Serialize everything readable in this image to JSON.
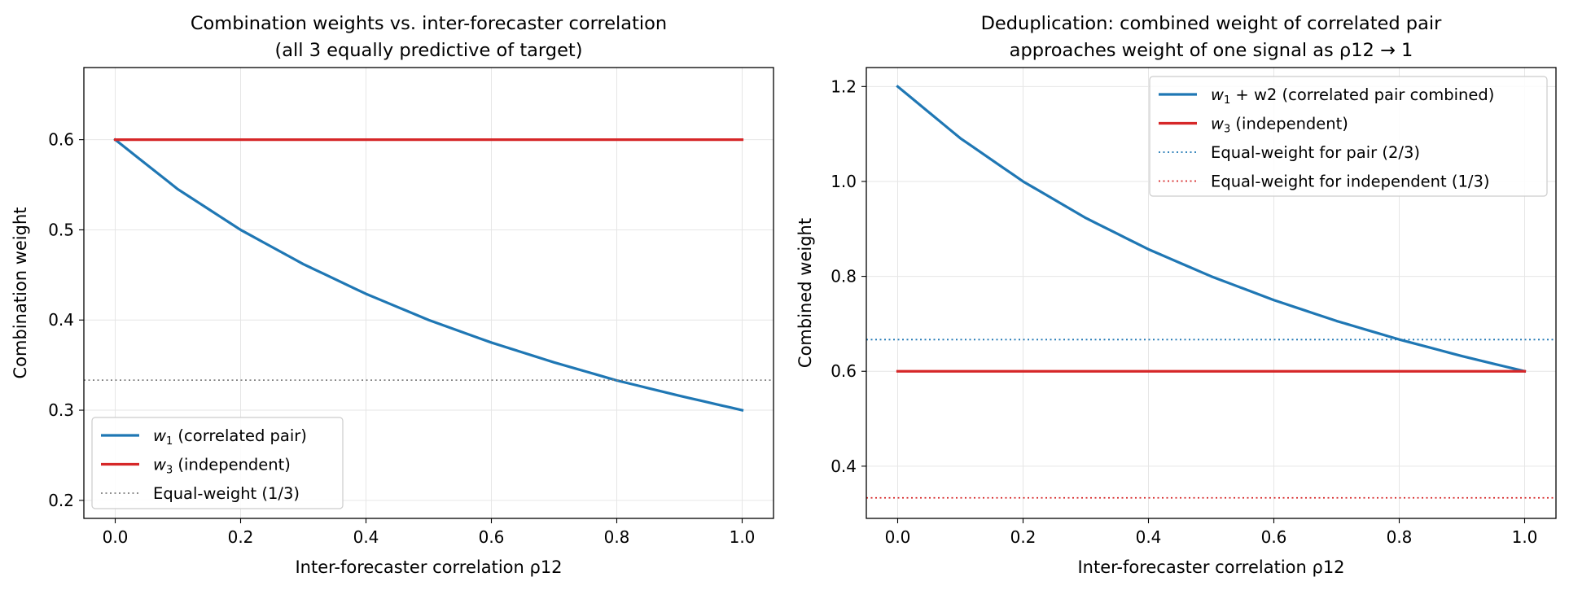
{
  "chart_data": [
    {
      "type": "line",
      "title": [
        "Combination weights vs. inter-forecaster correlation",
        "(all 3 equally predictive of target)"
      ],
      "xlabel": "Inter-forecaster correlation ρ12",
      "ylabel": "Combination weight",
      "xlim": [
        -0.05,
        1.05
      ],
      "ylim": [
        0.18,
        0.68
      ],
      "xticks": [
        0.0,
        0.2,
        0.4,
        0.6,
        0.8,
        1.0
      ],
      "xtick_labels": [
        "0.0",
        "0.2",
        "0.4",
        "0.6",
        "0.8",
        "1.0"
      ],
      "yticks": [
        0.2,
        0.3,
        0.4,
        0.5,
        0.6
      ],
      "ytick_labels": [
        "0.2",
        "0.3",
        "0.4",
        "0.5",
        "0.6"
      ],
      "grid": true,
      "legend_position": "lower-left",
      "series": [
        {
          "name": "w1 (correlated pair)",
          "legend_main": "w",
          "legend_sub": "1",
          "legend_rest": " (correlated pair)",
          "color": "#1f77b4",
          "style": "solid",
          "x": [
            0.0,
            0.1,
            0.2,
            0.3,
            0.4,
            0.5,
            0.6,
            0.7,
            0.8,
            0.9,
            1.0
          ],
          "y": [
            0.6,
            0.545,
            0.5,
            0.462,
            0.429,
            0.4,
            0.375,
            0.353,
            0.333,
            0.316,
            0.3
          ]
        },
        {
          "name": "w3 (independent)",
          "legend_main": "w",
          "legend_sub": "3",
          "legend_rest": " (independent)",
          "color": "#d62728",
          "style": "solid",
          "x": [
            0.0,
            1.0
          ],
          "y": [
            0.6,
            0.6
          ]
        },
        {
          "name": "Equal-weight (1/3)",
          "legend_main": "Equal-weight (1/3)",
          "legend_sub": "",
          "legend_rest": "",
          "color": "#808080",
          "style": "dotted",
          "hline": 0.3333
        }
      ]
    },
    {
      "type": "line",
      "title": [
        "Deduplication: combined weight of correlated pair",
        "approaches weight of one signal as ρ12 → 1"
      ],
      "xlabel": "Inter-forecaster correlation ρ12",
      "ylabel": "Combined weight",
      "xlim": [
        -0.05,
        1.05
      ],
      "ylim": [
        0.29,
        1.24
      ],
      "xticks": [
        0.0,
        0.2,
        0.4,
        0.6,
        0.8,
        1.0
      ],
      "xtick_labels": [
        "0.0",
        "0.2",
        "0.4",
        "0.6",
        "0.8",
        "1.0"
      ],
      "yticks": [
        0.4,
        0.6,
        0.8,
        1.0,
        1.2
      ],
      "ytick_labels": [
        "0.4",
        "0.6",
        "0.8",
        "1.0",
        "1.2"
      ],
      "grid": true,
      "legend_position": "upper-right",
      "series": [
        {
          "name": "w1 + w2 (correlated pair combined)",
          "legend_main": "w",
          "legend_sub": "1",
          "legend_rest": " + w2 (correlated pair combined)",
          "color": "#1f77b4",
          "style": "solid",
          "x": [
            0.0,
            0.1,
            0.2,
            0.3,
            0.4,
            0.5,
            0.6,
            0.7,
            0.8,
            0.9,
            1.0
          ],
          "y": [
            1.2,
            1.091,
            1.0,
            0.923,
            0.857,
            0.8,
            0.75,
            0.706,
            0.667,
            0.632,
            0.6
          ]
        },
        {
          "name": "w3 (independent)",
          "legend_main": "w",
          "legend_sub": "3",
          "legend_rest": " (independent)",
          "color": "#d62728",
          "style": "solid",
          "x": [
            0.0,
            1.0
          ],
          "y": [
            0.6,
            0.6
          ]
        },
        {
          "name": "Equal-weight for pair (2/3)",
          "legend_main": "Equal-weight for pair (2/3)",
          "legend_sub": "",
          "legend_rest": "",
          "color": "#1f77b4",
          "style": "dotted",
          "hline": 0.6667
        },
        {
          "name": "Equal-weight for independent (1/3)",
          "legend_main": "Equal-weight for independent (1/3)",
          "legend_sub": "",
          "legend_rest": "",
          "color": "#d62728",
          "style": "dotted",
          "hline": 0.3333
        }
      ]
    }
  ]
}
